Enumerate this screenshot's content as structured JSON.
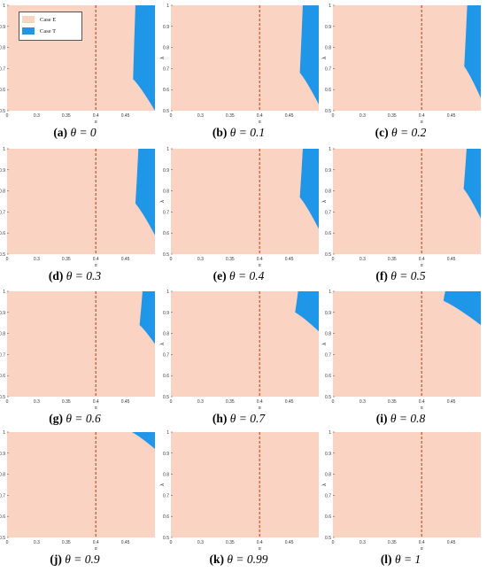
{
  "chart_data": {
    "type": "area",
    "legend": {
      "position": "top-left",
      "entries": [
        {
          "name": "Case E",
          "color": "#FBD3C2"
        },
        {
          "name": "Case T",
          "color": "#1F96E8"
        }
      ]
    },
    "reference_line": {
      "x": 0.4,
      "style": "dashed",
      "color": "#C0471A"
    },
    "panels": [
      {
        "label": "(a)",
        "theta": "θ = 0",
        "x_ticks": [
          "0",
          "0.3",
          "0.35",
          "0.4",
          "0.45"
        ],
        "case_t_boundary": {
          "x_top": 0.467,
          "x_kink": 0.463,
          "y_kink": 0.65,
          "x_bottom": 0.5,
          "y_bottom": 0.5
        }
      },
      {
        "label": "(b)",
        "theta": "θ = 0.1",
        "x_ticks": [
          "0",
          "0.3",
          "0.35",
          "0.4",
          "0.45"
        ],
        "case_t_boundary": {
          "x_top": 0.473,
          "x_kink": 0.468,
          "y_kink": 0.68,
          "x_bottom": 0.5,
          "y_bottom": 0.53
        }
      },
      {
        "label": "(c)",
        "theta": "θ = 0.2",
        "x_ticks": [
          "0",
          "0.3",
          "0.35",
          "0.4",
          "0.45"
        ],
        "case_t_boundary": {
          "x_top": 0.477,
          "x_kink": 0.472,
          "y_kink": 0.71,
          "x_bottom": 0.5,
          "y_bottom": 0.56
        }
      },
      {
        "label": "(d)",
        "theta": "θ = 0.3",
        "x_ticks": [
          "0",
          "0.3",
          "0.35",
          "0.4",
          "0.45"
        ],
        "case_t_boundary": {
          "x_top": 0.472,
          "x_kink": 0.467,
          "y_kink": 0.74,
          "x_bottom": 0.5,
          "y_bottom": 0.59
        }
      },
      {
        "label": "(e)",
        "theta": "θ = 0.4",
        "x_ticks": [
          "0",
          "0.3",
          "0.35",
          "0.4",
          "0.45"
        ],
        "case_t_boundary": {
          "x_top": 0.473,
          "x_kink": 0.468,
          "y_kink": 0.77,
          "x_bottom": 0.5,
          "y_bottom": 0.62
        }
      },
      {
        "label": "(f)",
        "theta": "θ = 0.5",
        "x_ticks": [
          "0",
          "0.3",
          "0.35",
          "0.4",
          "0.45"
        ],
        "case_t_boundary": {
          "x_top": 0.476,
          "x_kink": 0.471,
          "y_kink": 0.81,
          "x_bottom": 0.5,
          "y_bottom": 0.67
        }
      },
      {
        "label": "(g)",
        "theta": "θ = 0.6",
        "x_ticks": [
          "0",
          "0.3",
          "0.35",
          "0.4",
          "0.45"
        ],
        "case_t_boundary": {
          "x_top": 0.479,
          "x_kink": 0.474,
          "y_kink": 0.84,
          "x_bottom": 0.5,
          "y_bottom": 0.75
        }
      },
      {
        "label": "(h)",
        "theta": "θ = 0.7",
        "x_ticks": [
          "0",
          "0.3",
          "0.35",
          "0.4",
          "0.45"
        ],
        "case_t_boundary": {
          "x_top": 0.465,
          "x_kink": 0.46,
          "y_kink": 0.9,
          "x_bottom": 0.5,
          "y_bottom": 0.81
        }
      },
      {
        "label": "(i)",
        "theta": "θ = 0.8",
        "x_ticks": [
          "0",
          "0.3",
          "0.35",
          "0.4",
          "0.45"
        ],
        "case_t_boundary": {
          "x_top": 0.44,
          "x_kink": 0.437,
          "y_kink": 0.955,
          "x_bottom": 0.5,
          "y_bottom": 0.84
        }
      },
      {
        "label": "(j)",
        "theta": "θ = 0.9",
        "x_ticks": [
          "0",
          "0.3",
          "0.35",
          "0.4",
          "0.45"
        ],
        "case_t_boundary": {
          "x_top": 0.461,
          "x_kink": 0.461,
          "y_kink": 1.0,
          "x_bottom": 0.5,
          "y_bottom": 0.92
        }
      },
      {
        "label": "(k)",
        "theta": "θ = 0.99",
        "x_ticks": [
          "0",
          "0.3",
          "0.35",
          "0.4",
          "0.45"
        ],
        "case_t_boundary": null
      },
      {
        "label": "(l)",
        "theta": "θ = 1",
        "x_ticks": [
          "0",
          "0.3",
          "0.35",
          "0.4",
          "0.45"
        ],
        "case_t_boundary": null
      }
    ],
    "x_range": [
      0.25,
      0.5
    ],
    "y_range": [
      0.5,
      1.0
    ],
    "y_ticks": [
      "0.5",
      "0.6",
      "0.7",
      "0.8",
      "0.9",
      "1"
    ],
    "xlabel": "α",
    "ylabel": "λ"
  }
}
